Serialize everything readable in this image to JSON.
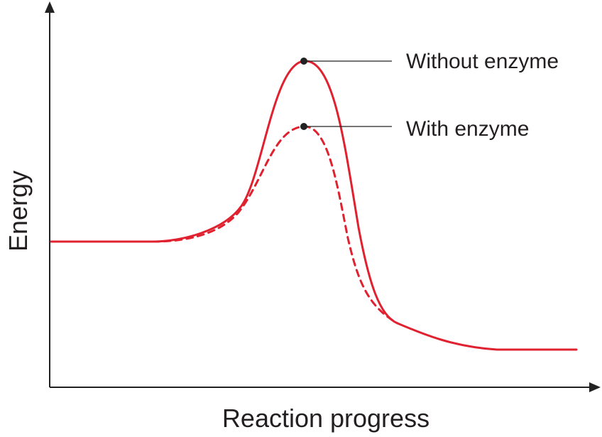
{
  "chart_data": {
    "type": "line",
    "xlabel": "Reaction progress",
    "ylabel": "Energy",
    "grid": false,
    "axis_arrows": true,
    "ticks": "none",
    "series": [
      {
        "name": "Without enzyme",
        "style": "solid",
        "color": "#e0212f",
        "peak_label": "Without enzyme"
      },
      {
        "name": "With enzyme",
        "style": "dashed",
        "color": "#e0212f",
        "peak_label": "With enzyme"
      }
    ],
    "reactant_energy": "higher than product energy",
    "activation_energy": "lower with enzyme"
  }
}
